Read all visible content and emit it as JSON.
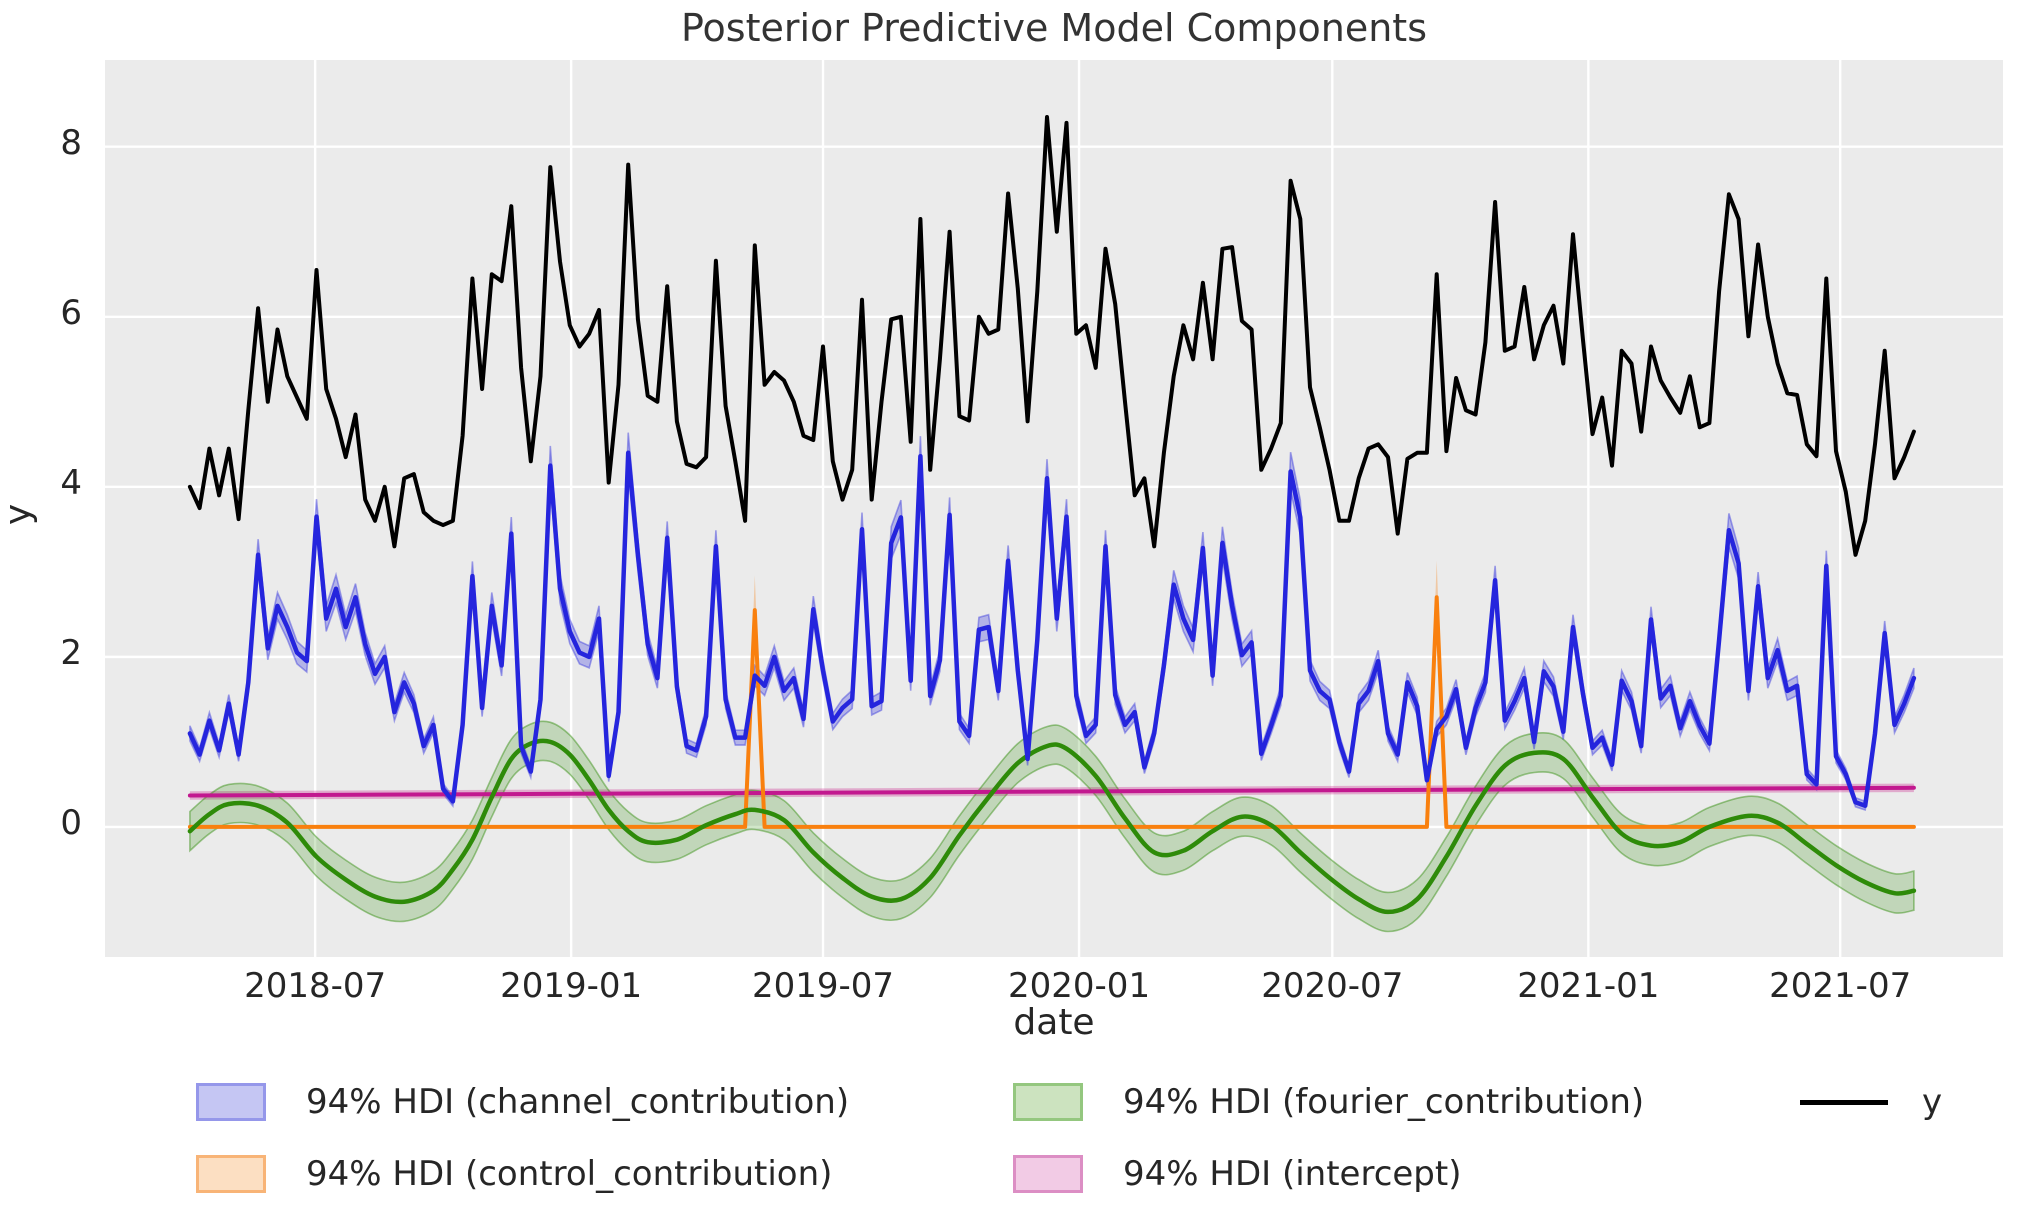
{
  "figure": {
    "title": "Posterior Predictive Model Components",
    "xlabel": "date",
    "ylabel": "y"
  },
  "legend": {
    "items": [
      {
        "label": "94% HDI (channel_contribution)",
        "swatch": "patch",
        "fill": "#c5c6f3",
        "border": "#9597ea",
        "row": 0,
        "col": 0
      },
      {
        "label": "94% HDI (control_contribution)",
        "swatch": "patch",
        "fill": "#fcdfc2",
        "border": "#f8b477",
        "row": 1,
        "col": 0
      },
      {
        "label": "94% HDI (fourier_contribution)",
        "swatch": "patch",
        "fill": "#cce3bf",
        "border": "#94c77f",
        "row": 0,
        "col": 1
      },
      {
        "label": "94% HDI (intercept)",
        "swatch": "patch",
        "fill": "#f2cbe5",
        "border": "#dc8ec4",
        "row": 1,
        "col": 1
      },
      {
        "label": "y",
        "swatch": "line",
        "color": "#000000",
        "row": 0,
        "col": 2
      }
    ]
  },
  "chart_data": {
    "type": "line",
    "title": "Posterior Predictive Model Components",
    "xlabel": "date",
    "ylabel": "y",
    "background": "#ebebeb",
    "grid": true,
    "gridcolor": "#ffffff",
    "legend_position": "below",
    "xlim_dates": [
      "2018-01-31",
      "2021-10-26"
    ],
    "ylim": [
      -1.53,
      9.02
    ],
    "y_ticks": [
      0,
      2,
      4,
      6,
      8
    ],
    "x_ticks": [
      {
        "label": "2018-07",
        "date": "2018-07-01"
      },
      {
        "label": "2019-01",
        "date": "2019-01-01"
      },
      {
        "label": "2019-07",
        "date": "2019-07-01"
      },
      {
        "label": "2020-01",
        "date": "2020-01-01"
      },
      {
        "label": "2020-07",
        "date": "2020-07-01"
      },
      {
        "label": "2021-01",
        "date": "2021-01-01"
      },
      {
        "label": "2021-07",
        "date": "2021-07-01"
      }
    ],
    "series": [
      {
        "name": "intercept",
        "hdi_label": "94% HDI (intercept)",
        "color": "#c2188f",
        "line_width": 4,
        "points": [
          [
            "2018-04-02",
            0.37
          ],
          [
            "2019-01-01",
            0.39
          ],
          [
            "2019-10-01",
            0.41
          ],
          [
            "2020-06-01",
            0.43
          ],
          [
            "2021-08-23",
            0.46
          ]
        ],
        "band": {
          "half_width": 0.05,
          "half_width_rel": 0,
          "fill": "rgba(199,21,133,0.30)"
        }
      },
      {
        "name": "control_contribution",
        "hdi_label": "94% HDI (control_contribution)",
        "color": "#f9800e",
        "line_width": 4,
        "points": [
          [
            "2018-04-02",
            0
          ],
          [
            "2019-05-06",
            0
          ],
          [
            "2019-05-13",
            2.55
          ],
          [
            "2019-05-20",
            0
          ],
          [
            "2020-09-07",
            0
          ],
          [
            "2020-09-14",
            2.7
          ],
          [
            "2020-09-21",
            0
          ],
          [
            "2021-08-23",
            0
          ]
        ],
        "band": {
          "half_width": 0,
          "half_width_rel": 0.16,
          "fill": "rgba(249,128,14,0.32)"
        }
      },
      {
        "name": "fourier_contribution",
        "hdi_label": "94% HDI (fourier_contribution)",
        "color": "#2e8b09",
        "line_width": 4.5,
        "smooth": true,
        "points": [
          [
            "2018-04-02",
            -0.05
          ],
          [
            "2018-04-16",
            0.15
          ],
          [
            "2018-04-30",
            0.27
          ],
          [
            "2018-05-21",
            0.25
          ],
          [
            "2018-06-11",
            0.05
          ],
          [
            "2018-07-02",
            -0.35
          ],
          [
            "2018-07-23",
            -0.62
          ],
          [
            "2018-08-13",
            -0.82
          ],
          [
            "2018-09-03",
            -0.88
          ],
          [
            "2018-09-24",
            -0.75
          ],
          [
            "2018-10-08",
            -0.5
          ],
          [
            "2018-10-22",
            -0.15
          ],
          [
            "2018-11-05",
            0.35
          ],
          [
            "2018-11-19",
            0.8
          ],
          [
            "2018-12-03",
            0.98
          ],
          [
            "2018-12-17",
            1.0
          ],
          [
            "2018-12-31",
            0.85
          ],
          [
            "2019-01-14",
            0.55
          ],
          [
            "2019-01-28",
            0.2
          ],
          [
            "2019-02-11",
            -0.05
          ],
          [
            "2019-02-25",
            -0.18
          ],
          [
            "2019-03-18",
            -0.15
          ],
          [
            "2019-04-08",
            0.02
          ],
          [
            "2019-04-29",
            0.15
          ],
          [
            "2019-05-13",
            0.2
          ],
          [
            "2019-06-03",
            0.08
          ],
          [
            "2019-06-24",
            -0.3
          ],
          [
            "2019-07-15",
            -0.6
          ],
          [
            "2019-08-05",
            -0.82
          ],
          [
            "2019-08-26",
            -0.85
          ],
          [
            "2019-09-16",
            -0.6
          ],
          [
            "2019-10-07",
            -0.1
          ],
          [
            "2019-10-28",
            0.35
          ],
          [
            "2019-11-18",
            0.75
          ],
          [
            "2019-12-09",
            0.95
          ],
          [
            "2019-12-23",
            0.92
          ],
          [
            "2020-01-13",
            0.6
          ],
          [
            "2020-02-03",
            0.1
          ],
          [
            "2020-02-24",
            -0.3
          ],
          [
            "2020-03-16",
            -0.28
          ],
          [
            "2020-04-06",
            -0.05
          ],
          [
            "2020-04-27",
            0.12
          ],
          [
            "2020-05-18",
            0.02
          ],
          [
            "2020-06-08",
            -0.3
          ],
          [
            "2020-06-29",
            -0.6
          ],
          [
            "2020-07-20",
            -0.85
          ],
          [
            "2020-08-10",
            -1.0
          ],
          [
            "2020-08-31",
            -0.85
          ],
          [
            "2020-09-21",
            -0.35
          ],
          [
            "2020-10-12",
            0.25
          ],
          [
            "2020-11-02",
            0.72
          ],
          [
            "2020-11-23",
            0.87
          ],
          [
            "2020-12-14",
            0.8
          ],
          [
            "2021-01-04",
            0.35
          ],
          [
            "2021-01-25",
            -0.08
          ],
          [
            "2021-02-15",
            -0.22
          ],
          [
            "2021-03-08",
            -0.18
          ],
          [
            "2021-03-29",
            0.0
          ],
          [
            "2021-04-26",
            0.13
          ],
          [
            "2021-05-17",
            0.05
          ],
          [
            "2021-06-07",
            -0.2
          ],
          [
            "2021-06-28",
            -0.45
          ],
          [
            "2021-07-19",
            -0.65
          ],
          [
            "2021-08-09",
            -0.78
          ],
          [
            "2021-08-23",
            -0.75
          ]
        ],
        "band": {
          "half_width": 0.23,
          "half_width_rel": 0,
          "fill": "rgba(46,139,9,0.22)",
          "edge": "rgba(46,139,9,0.45)"
        }
      },
      {
        "name": "channel_contribution",
        "hdi_label": "94% HDI (channel_contribution)",
        "color": "#2525dd",
        "line_width": 4.5,
        "start_date": "2018-04-02",
        "step_days": 7,
        "values": [
          1.1,
          0.85,
          1.25,
          0.9,
          1.45,
          0.85,
          1.7,
          3.2,
          2.1,
          2.6,
          2.35,
          2.05,
          1.95,
          3.65,
          2.45,
          2.8,
          2.35,
          2.7,
          2.15,
          1.8,
          2.0,
          1.35,
          1.7,
          1.45,
          0.95,
          1.2,
          0.45,
          0.3,
          1.2,
          2.95,
          1.4,
          2.6,
          1.9,
          3.45,
          0.95,
          0.65,
          1.5,
          4.25,
          2.8,
          2.3,
          2.05,
          2.0,
          2.45,
          0.6,
          1.35,
          4.4,
          3.2,
          2.15,
          1.75,
          3.4,
          1.65,
          0.95,
          0.9,
          1.3,
          3.3,
          1.5,
          1.05,
          1.05,
          1.78,
          1.66,
          2.0,
          1.6,
          1.75,
          1.27,
          2.56,
          1.84,
          1.24,
          1.4,
          1.5,
          3.5,
          1.42,
          1.48,
          3.34,
          3.64,
          1.72,
          4.36,
          1.54,
          1.96,
          3.67,
          1.24,
          1.07,
          2.32,
          2.35,
          1.6,
          3.13,
          1.84,
          0.8,
          2.2,
          4.1,
          2.45,
          3.65,
          1.54,
          1.07,
          1.2,
          3.3,
          1.55,
          1.2,
          1.35,
          0.7,
          1.1,
          1.9,
          2.85,
          2.45,
          2.2,
          3.28,
          1.78,
          3.34,
          2.6,
          2.02,
          2.17,
          0.86,
          1.19,
          1.54,
          4.18,
          3.64,
          1.84,
          1.6,
          1.5,
          1.0,
          0.65,
          1.45,
          1.6,
          1.95,
          1.1,
          0.85,
          1.7,
          1.42,
          0.55,
          1.15,
          1.3,
          1.62,
          0.93,
          1.4,
          1.7,
          2.9,
          1.25,
          1.48,
          1.75,
          1.0,
          1.83,
          1.65,
          1.12,
          2.35,
          1.58,
          0.93,
          1.05,
          0.73,
          1.72,
          1.48,
          0.95,
          2.44,
          1.51,
          1.66,
          1.16,
          1.48,
          1.19,
          0.98,
          2.2,
          3.49,
          3.1,
          1.6,
          2.83,
          1.75,
          2.08,
          1.6,
          1.66,
          0.62,
          0.5,
          3.07,
          0.83,
          0.62,
          0.29,
          0.25,
          1.1,
          2.28,
          1.2,
          1.45,
          1.75
        ],
        "band": {
          "half_width": 0.04,
          "half_width_rel": 0.045,
          "fill": "rgba(37,37,221,0.28)",
          "edge": "rgba(37,37,221,0.40)"
        }
      },
      {
        "name": "y",
        "color": "#000000",
        "line_width": 4,
        "start_date": "2018-04-02",
        "step_days": 7,
        "values": [
          4.0,
          3.75,
          4.45,
          3.9,
          4.45,
          3.62,
          4.9,
          6.1,
          5.0,
          5.85,
          5.3,
          5.05,
          4.8,
          6.55,
          5.15,
          4.8,
          4.35,
          4.85,
          3.85,
          3.6,
          4.0,
          3.3,
          4.1,
          4.15,
          3.7,
          3.6,
          3.55,
          3.6,
          4.6,
          6.45,
          5.15,
          6.5,
          6.42,
          7.3,
          5.4,
          4.3,
          5.3,
          7.76,
          6.65,
          5.9,
          5.65,
          5.8,
          6.08,
          4.05,
          5.2,
          7.79,
          5.97,
          5.07,
          5.0,
          6.36,
          4.77,
          4.27,
          4.23,
          4.35,
          6.66,
          4.95,
          4.3,
          3.6,
          6.84,
          5.2,
          5.35,
          5.25,
          5.0,
          4.6,
          4.55,
          5.65,
          4.3,
          3.85,
          4.2,
          6.2,
          3.85,
          5.0,
          5.97,
          6.0,
          4.53,
          7.15,
          4.2,
          5.5,
          7.0,
          4.83,
          4.78,
          6.0,
          5.8,
          5.85,
          7.45,
          6.33,
          4.77,
          6.3,
          8.35,
          7.0,
          8.28,
          5.8,
          5.9,
          5.4,
          6.8,
          6.15,
          5.0,
          3.9,
          4.1,
          3.3,
          4.4,
          5.3,
          5.9,
          5.5,
          6.4,
          5.5,
          6.8,
          6.82,
          5.95,
          5.85,
          4.2,
          4.45,
          4.75,
          7.6,
          7.15,
          5.17,
          4.7,
          4.2,
          3.6,
          3.6,
          4.1,
          4.45,
          4.5,
          4.35,
          3.45,
          4.33,
          4.4,
          4.4,
          6.5,
          4.42,
          5.28,
          4.9,
          4.85,
          5.7,
          7.35,
          5.6,
          5.65,
          6.35,
          5.5,
          5.9,
          6.13,
          5.45,
          6.97,
          5.75,
          4.62,
          5.05,
          4.25,
          5.6,
          5.45,
          4.65,
          5.65,
          5.25,
          5.05,
          4.87,
          5.3,
          4.7,
          4.75,
          6.3,
          7.44,
          7.15,
          5.77,
          6.85,
          6.0,
          5.45,
          5.1,
          5.08,
          4.5,
          4.36,
          6.45,
          4.42,
          3.94,
          3.2,
          3.6,
          4.5,
          5.6,
          4.1,
          4.35,
          4.65
        ]
      }
    ]
  }
}
